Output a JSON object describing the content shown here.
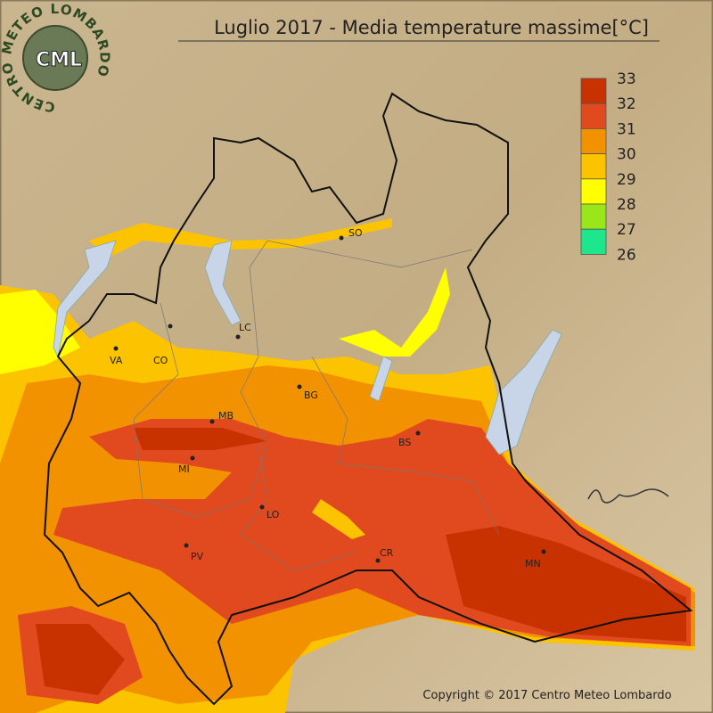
{
  "title": "Luglio 2017 - Media temperature massime[°C]",
  "logo": {
    "ring_text": "CENTRO METEO LOMBARDO",
    "initials": "CML"
  },
  "legend": {
    "labels": [
      33,
      32,
      31,
      30,
      29,
      28,
      27,
      26
    ],
    "colors": [
      "#c83200",
      "#e04a1e",
      "#f39200",
      "#fcc300",
      "#ffff00",
      "#99e619",
      "#1ee68c"
    ]
  },
  "cities": [
    "SO",
    "LC",
    "VA",
    "CO",
    "BG",
    "MB",
    "BS",
    "MI",
    "LO",
    "PV",
    "CR",
    "MN"
  ],
  "copyright": "Copyright © 2017 Centro Meteo Lombardo"
}
